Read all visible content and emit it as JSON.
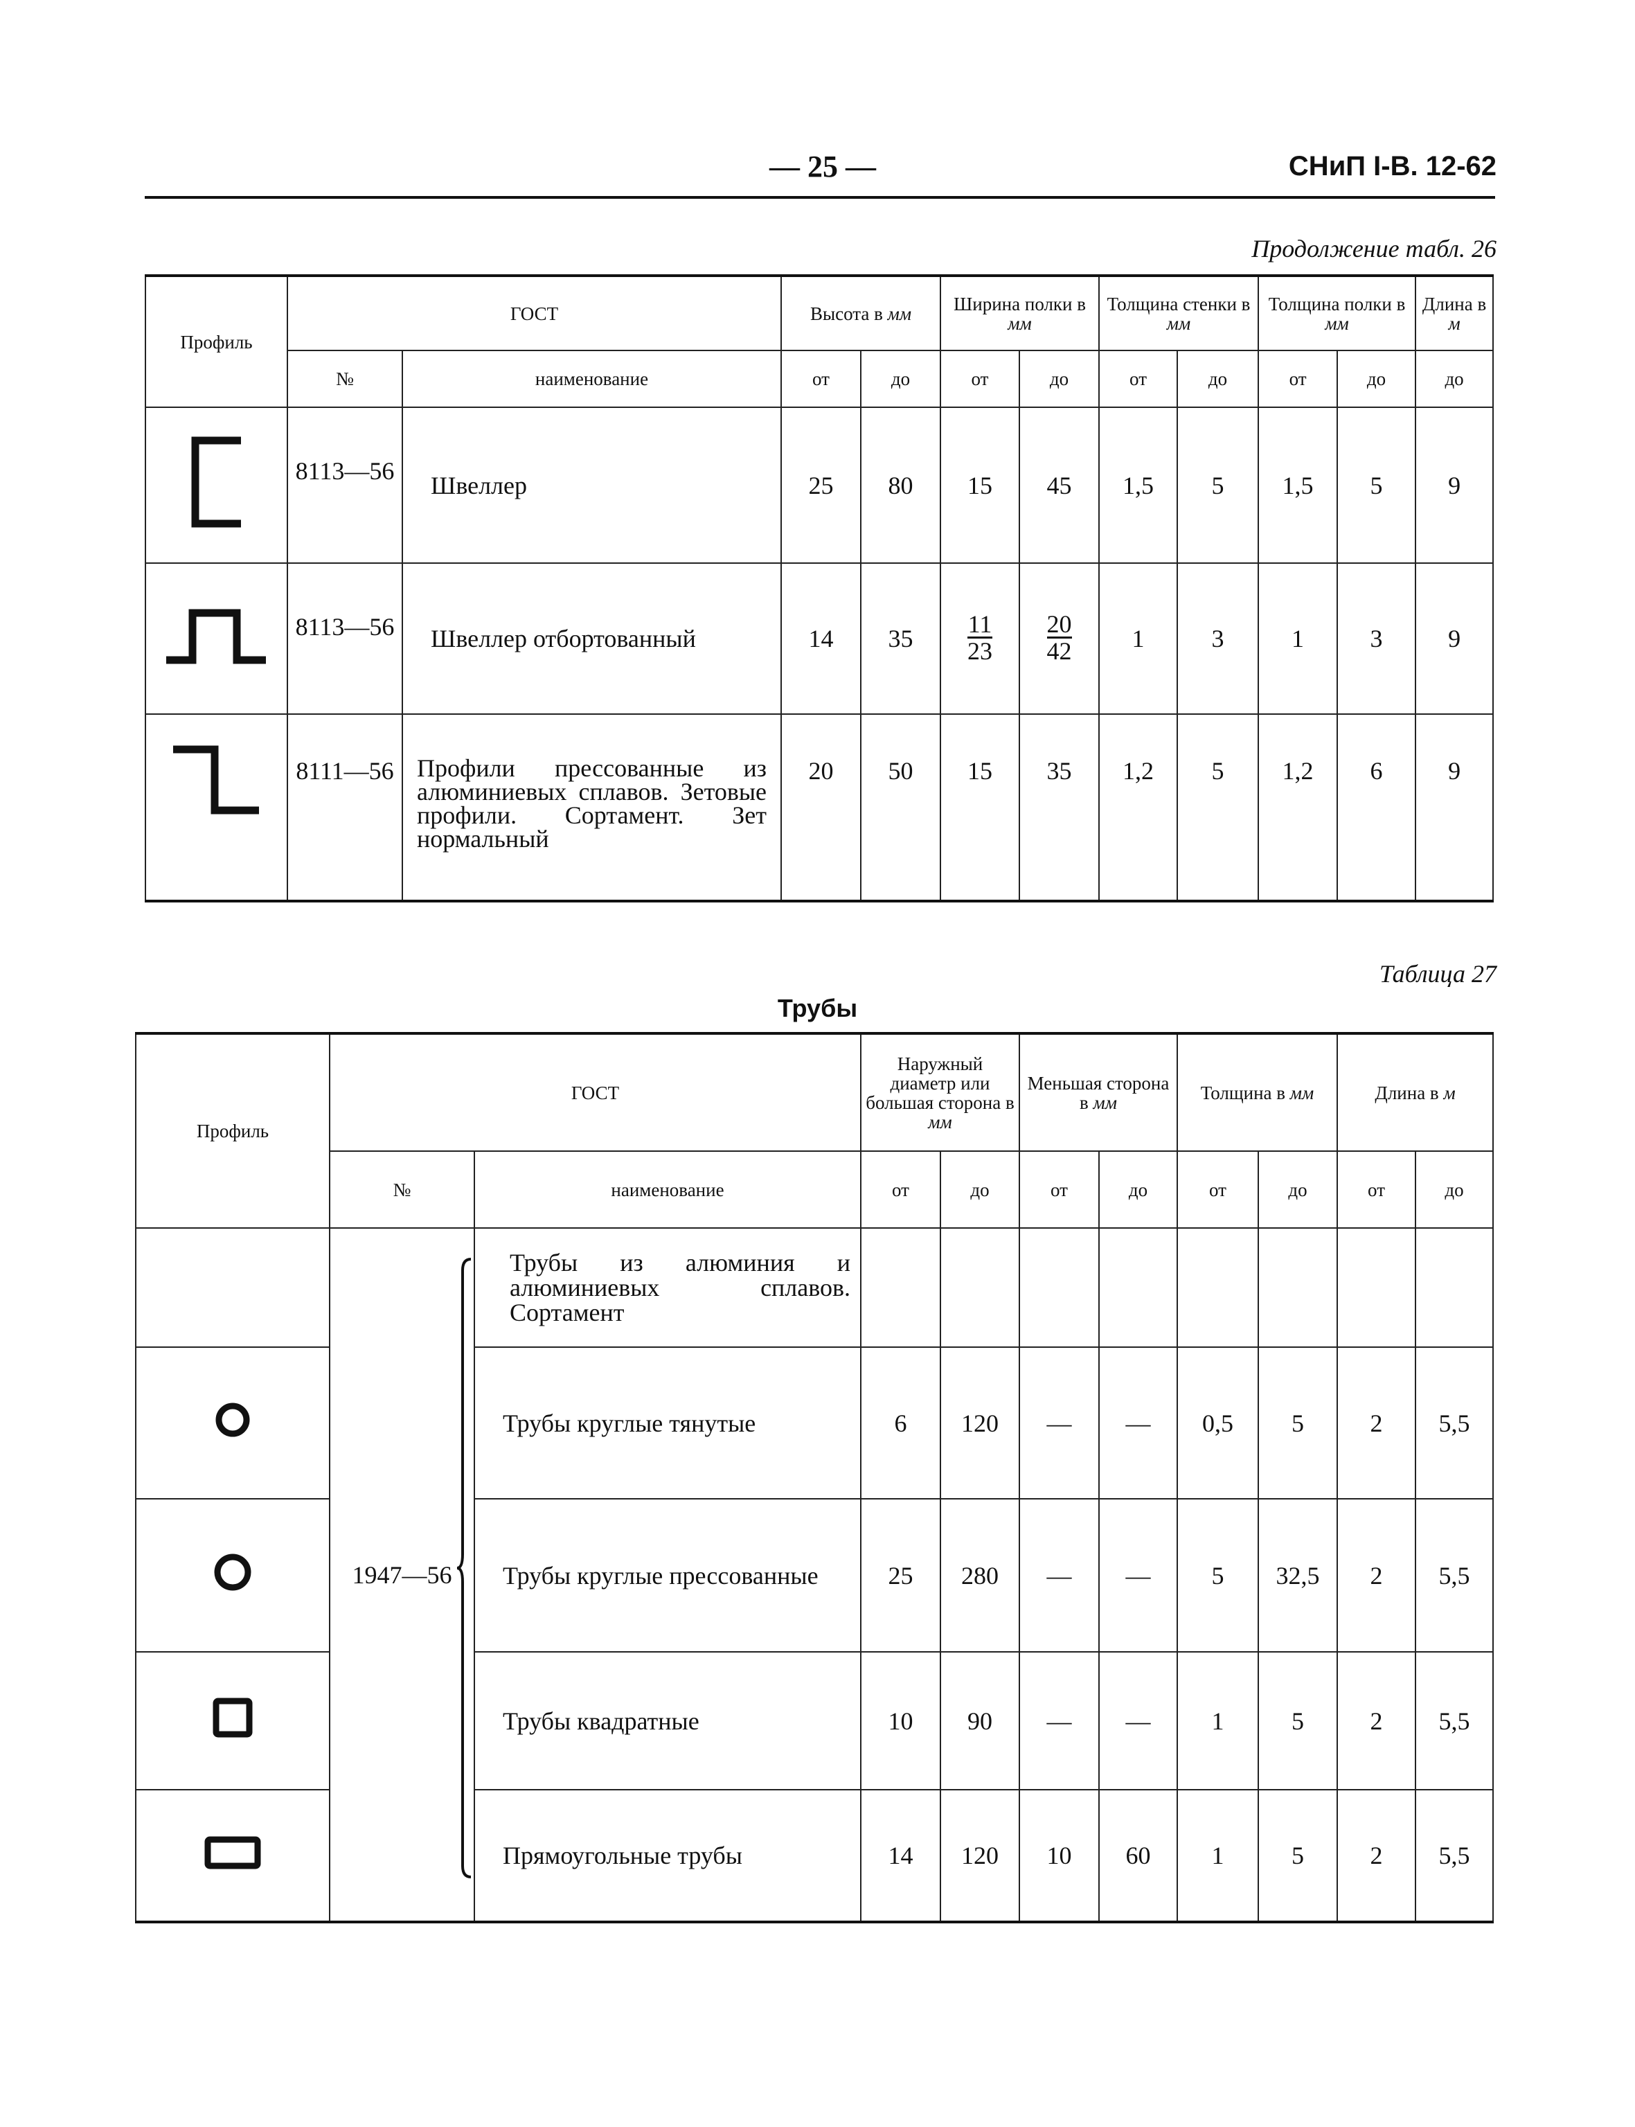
{
  "header": {
    "page_number": "— 25 —",
    "document_code": "СНиП I-В. 12-62"
  },
  "table26": {
    "caption": "Продолжение табл. 26",
    "headers": {
      "profile": "Профиль",
      "gost": "ГОСТ",
      "number": "№",
      "name": "наименование",
      "height": "Высота в",
      "height_unit": "мм",
      "flange_width": "Ширина полки в",
      "flange_width_unit": "мм",
      "web_thickness": "Толщина стенки в",
      "web_thickness_unit": "мм",
      "flange_thickness": "Толщина полки в",
      "flange_thickness_unit": "мм",
      "length": "Длина в",
      "length_unit": "м",
      "from": "от",
      "to": "до"
    },
    "rows": [
      {
        "profile_icon": "channel-profile-icon",
        "number": "8113—56",
        "name": "Швеллер",
        "h_from": "25",
        "h_to": "80",
        "w_from": "15",
        "w_to": "45",
        "tw_from": "1,5",
        "tw_to": "5",
        "tf_from": "1,5",
        "tf_to": "5",
        "len_to": "9"
      },
      {
        "profile_icon": "flanged-channel-profile-icon",
        "number": "8113—56",
        "name": "Швеллер отбортованный",
        "h_from": "14",
        "h_to": "35",
        "w_from_num": "11",
        "w_from_den": "23",
        "w_to_num": "20",
        "w_to_den": "42",
        "tw_from": "1",
        "tw_to": "3",
        "tf_from": "1",
        "tf_to": "3",
        "len_to": "9"
      },
      {
        "profile_icon": "z-profile-icon",
        "number": "8111—56",
        "name": "Профили прессованные из алюминиевых сплавов. Зетовые профили. Сортамент. Зет нормальный",
        "h_from": "20",
        "h_to": "50",
        "w_from": "15",
        "w_to": "35",
        "tw_from": "1,2",
        "tw_to": "5",
        "tf_from": "1,2",
        "tf_to": "6",
        "len_to": "9"
      }
    ]
  },
  "table27": {
    "caption": "Таблица 27",
    "title": "Трубы",
    "headers": {
      "profile": "Профиль",
      "gost": "ГОСТ",
      "number": "№",
      "name": "наименование",
      "outer": "Наружный диаметр или большая сторона в",
      "outer_unit": "мм",
      "smaller": "Меньшая сторона в",
      "smaller_unit": "мм",
      "thickness": "Толщина в",
      "thickness_unit": "мм",
      "length": "Длина в",
      "length_unit": "м",
      "from": "от",
      "to": "до"
    },
    "gost_number": "1947—56",
    "rows": [
      {
        "profile_icon": "",
        "name": "Трубы из алюминия и алюминиевых сплавов. Сортамент",
        "d_from": "",
        "d_to": "",
        "s_from": "",
        "s_to": "",
        "t_from": "",
        "t_to": "",
        "l_from": "",
        "l_to": ""
      },
      {
        "profile_icon": "round-tube-icon",
        "name": "Трубы круглые тянутые",
        "d_from": "6",
        "d_to": "120",
        "s_from": "—",
        "s_to": "—",
        "t_from": "0,5",
        "t_to": "5",
        "l_from": "2",
        "l_to": "5,5"
      },
      {
        "profile_icon": "round-tube-thick-icon",
        "name": "Трубы круглые прессованные",
        "d_from": "25",
        "d_to": "280",
        "s_from": "—",
        "s_to": "—",
        "t_from": "5",
        "t_to": "32,5",
        "l_from": "2",
        "l_to": "5,5"
      },
      {
        "profile_icon": "square-tube-icon",
        "name": "Трубы квадратные",
        "d_from": "10",
        "d_to": "90",
        "s_from": "—",
        "s_to": "—",
        "t_from": "1",
        "t_to": "5",
        "l_from": "2",
        "l_to": "5,5"
      },
      {
        "profile_icon": "rectangular-tube-icon",
        "name": "Прямоугольные трубы",
        "d_from": "14",
        "d_to": "120",
        "s_from": "10",
        "s_to": "60",
        "t_from": "1",
        "t_to": "5",
        "l_from": "2",
        "l_to": "5,5"
      }
    ]
  }
}
